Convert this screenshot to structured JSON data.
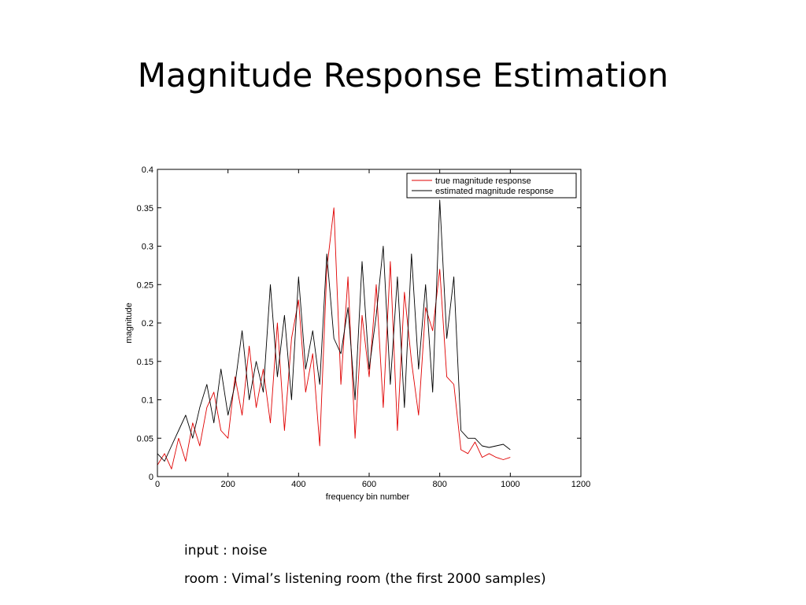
{
  "slide": {
    "title": "Magnitude Response Estimation",
    "captions": [
      "input : noise",
      "room : Vimal’s listening room (the first 2000 samples)"
    ]
  },
  "chart_data": {
    "type": "line",
    "xlabel": "frequency bin number",
    "ylabel": "magnitude",
    "xlim": [
      0,
      1200
    ],
    "ylim": [
      0,
      0.4
    ],
    "xticks": [
      0,
      200,
      400,
      600,
      800,
      1000,
      1200
    ],
    "yticks": [
      0,
      0.05,
      0.1,
      0.15,
      0.2,
      0.25,
      0.3,
      0.35,
      0.4
    ],
    "ytick_labels": [
      "0",
      "0.05",
      "0.1",
      "0.15",
      "0.2",
      "0.25",
      "0.3",
      "0.35",
      "0.4"
    ],
    "grid": false,
    "legend_position": "top-right",
    "series": [
      {
        "name": "true magnitude response",
        "color": "#e00000",
        "x": [
          0,
          20,
          40,
          60,
          80,
          100,
          120,
          140,
          160,
          180,
          200,
          220,
          240,
          260,
          280,
          300,
          320,
          340,
          360,
          380,
          400,
          420,
          440,
          460,
          480,
          500,
          520,
          540,
          560,
          580,
          600,
          620,
          640,
          660,
          680,
          700,
          720,
          740,
          760,
          780,
          800,
          820,
          840,
          860,
          880,
          900,
          920,
          940,
          960,
          980,
          1000
        ],
        "y": [
          0.015,
          0.03,
          0.01,
          0.05,
          0.02,
          0.07,
          0.04,
          0.09,
          0.11,
          0.06,
          0.05,
          0.13,
          0.08,
          0.17,
          0.09,
          0.14,
          0.07,
          0.2,
          0.06,
          0.18,
          0.23,
          0.11,
          0.16,
          0.04,
          0.27,
          0.35,
          0.12,
          0.26,
          0.05,
          0.21,
          0.13,
          0.25,
          0.09,
          0.28,
          0.06,
          0.24,
          0.15,
          0.08,
          0.22,
          0.19,
          0.27,
          0.13,
          0.12,
          0.035,
          0.03,
          0.045,
          0.025,
          0.03,
          0.025,
          0.022,
          0.025
        ]
      },
      {
        "name": "estimated magnitude response",
        "color": "#000000",
        "x": [
          0,
          20,
          40,
          60,
          80,
          100,
          120,
          140,
          160,
          180,
          200,
          220,
          240,
          260,
          280,
          300,
          320,
          340,
          360,
          380,
          400,
          420,
          440,
          460,
          480,
          500,
          520,
          540,
          560,
          580,
          600,
          620,
          640,
          660,
          680,
          700,
          720,
          740,
          760,
          780,
          800,
          820,
          840,
          860,
          880,
          900,
          920,
          940,
          960,
          980,
          1000
        ],
        "y": [
          0.03,
          0.02,
          0.04,
          0.06,
          0.08,
          0.05,
          0.09,
          0.12,
          0.07,
          0.14,
          0.08,
          0.12,
          0.19,
          0.1,
          0.15,
          0.11,
          0.25,
          0.13,
          0.21,
          0.1,
          0.26,
          0.14,
          0.19,
          0.12,
          0.29,
          0.18,
          0.16,
          0.22,
          0.1,
          0.28,
          0.14,
          0.21,
          0.3,
          0.12,
          0.26,
          0.09,
          0.29,
          0.14,
          0.25,
          0.11,
          0.36,
          0.18,
          0.26,
          0.06,
          0.05,
          0.05,
          0.04,
          0.038,
          0.04,
          0.042,
          0.035
        ]
      }
    ]
  }
}
